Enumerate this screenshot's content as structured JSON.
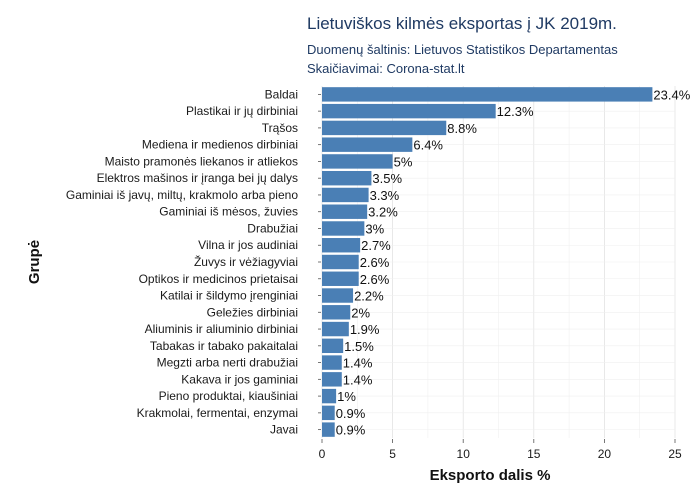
{
  "chart_data": {
    "type": "bar",
    "orientation": "horizontal",
    "title": "Lietuviškos kilmės eksportas į JK 2019m.",
    "subtitle_lines": [
      "Duomenų šaltinis: Lietuvos Statistikos Departamentas",
      "Skaičiavimai: Corona-stat.lt"
    ],
    "xlabel": "Eksporto dalis %",
    "ylabel": "Grupė",
    "xlim": [
      0,
      25
    ],
    "xticks": [
      0,
      5,
      10,
      15,
      20,
      25
    ],
    "grid": true,
    "bar_color": "#4a7fb5",
    "categories": [
      "Baldai",
      "Plastikai ir jų dirbiniai",
      "Trąšos",
      "Mediena ir medienos dirbiniai",
      "Maisto pramonės liekanos ir atliekos",
      "Elektros mašinos ir įranga bei jų dalys",
      "Gaminiai iš javų, miltų, krakmolo arba pieno",
      "Gaminiai iš mėsos, žuvies",
      "Drabužiai",
      "Vilna ir jos audiniai",
      "Žuvys ir vėžiagyviai",
      "Optikos ir medicinos prietaisai",
      "Katilai ir šildymo įrenginiai",
      "Geležies dirbiniai",
      "Aliuminis ir aliuminio dirbiniai",
      "Tabakas ir tabako pakaitalai",
      "Megzti arba nerti drabužiai",
      "Kakava ir jos gaminiai",
      "Pieno produktai, kiaušiniai",
      "Krakmolai, fermentai, enzymai",
      "Javai"
    ],
    "values": [
      23.4,
      12.3,
      8.8,
      6.4,
      5,
      3.5,
      3.3,
      3.2,
      3,
      2.7,
      2.6,
      2.6,
      2.2,
      2,
      1.9,
      1.5,
      1.4,
      1.4,
      1,
      0.9,
      0.9
    ],
    "value_labels": [
      "23.4%",
      "12.3%",
      "8.8%",
      "6.4%",
      "5%",
      "3.5%",
      "3.3%",
      "3.2%",
      "3%",
      "2.7%",
      "2.6%",
      "2.6%",
      "2.2%",
      "2%",
      "1.9%",
      "1.5%",
      "1.4%",
      "1.4%",
      "1%",
      "0.9%",
      "0.9%"
    ]
  }
}
